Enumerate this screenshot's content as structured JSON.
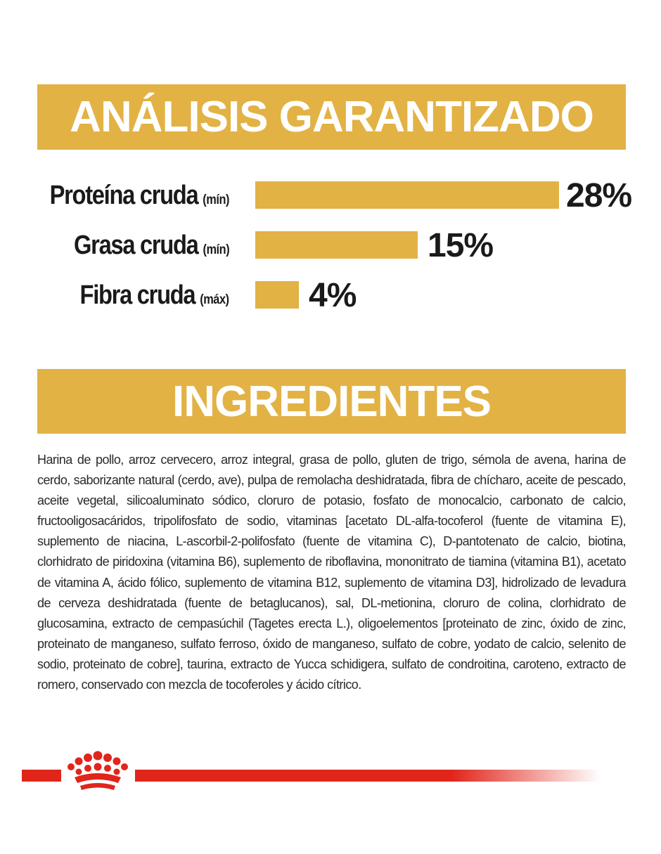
{
  "analysis": {
    "title": "ANÁLISIS GARANTIZADO",
    "items": [
      {
        "name": "Proteína cruda",
        "qualifier": "(mín)",
        "value_text": "28%",
        "value": 28
      },
      {
        "name": "Grasa cruda",
        "qualifier": "(mín)",
        "value_text": "15%",
        "value": 15
      },
      {
        "name": "Fibra cruda",
        "qualifier": "(máx)",
        "value_text": "4%",
        "value": 4
      }
    ]
  },
  "ingredients": {
    "title": "INGREDIENTES",
    "text": "Harina de pollo, arroz cervecero, arroz integral, grasa de pollo, gluten de trigo, sémola de avena, harina de cerdo, saborizante natural (cerdo, ave), pulpa de remolacha deshidratada, fibra de chícharo, aceite de pescado, aceite vegetal, silicoaluminato sódico, cloruro de potasio, fosfato de monocalcio, carbonato de calcio, fructooligosacáridos, tripolifosfato de sodio, vitaminas [acetato DL-alfa-tocoferol (fuente de vitamina E), suplemento de niacina, L-ascorbil-2-polifosfato (fuente de vitamina C), D-pantotenato de calcio, biotina, clorhidrato de piridoxina (vitamina B6), suplemento de riboflavina, mononitrato de tiamina (vitamina B1), acetato de vitamina A, ácido fólico, suplemento de vitamina B12, suplemento de vitamina D3], hidrolizado de levadura de cerveza deshidratada (fuente de betaglucanos), sal, DL-metionina, cloruro de colina, clorhidrato de glucosamina, extracto de cempasúchil (Tagetes erecta L.), oligoelementos [proteinato de zinc, óxido de zinc, proteinato de manganeso, sulfato ferroso, óxido de manganeso, sulfato de cobre, yodato de calcio, selenito de sodio, proteinato de cobre], taurina, extracto de Yucca schidigera, sulfato de condroitina, caroteno, extracto de romero, conservado con mezcla de tocoferoles y ácido cítrico."
  },
  "footer": {
    "logo_icon": "royal-crown-icon"
  },
  "colors": {
    "gold": "#e2b244",
    "red": "#e1251b",
    "text": "#1a1a1a"
  }
}
